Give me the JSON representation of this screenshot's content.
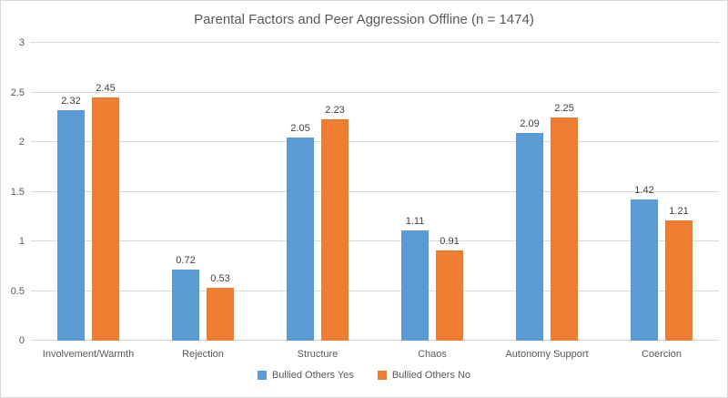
{
  "chart_data": {
    "type": "bar",
    "title": "Parental Factors and Peer Aggression Offline (n = 1474)",
    "categories": [
      "Involvement/Warmth",
      "Rejection",
      "Structure",
      "Chaos",
      "Autonomy Support",
      "Coercion"
    ],
    "series": [
      {
        "name": "Bullied Others Yes",
        "color": "#5b9bd5",
        "values": [
          2.32,
          0.72,
          2.05,
          1.11,
          2.09,
          1.42
        ]
      },
      {
        "name": "Bullied Others No",
        "color": "#ed7d31",
        "values": [
          2.45,
          0.53,
          2.23,
          0.91,
          2.25,
          1.21
        ]
      }
    ],
    "ylim": [
      0,
      3
    ],
    "yticks": [
      "0",
      "0.5",
      "1",
      "1.5",
      "2",
      "2.5",
      "3"
    ],
    "grid": true,
    "data_labels": true,
    "legend_position": "bottom",
    "xlabel": "",
    "ylabel": ""
  },
  "styles": {
    "text_color": "#595959",
    "data_label_color": "#404040",
    "gridline_color": "#d9d9d9",
    "axis_line_color": "#d9d9d9",
    "frame_border_color": "#d9d9d9",
    "background": "#ffffff"
  }
}
